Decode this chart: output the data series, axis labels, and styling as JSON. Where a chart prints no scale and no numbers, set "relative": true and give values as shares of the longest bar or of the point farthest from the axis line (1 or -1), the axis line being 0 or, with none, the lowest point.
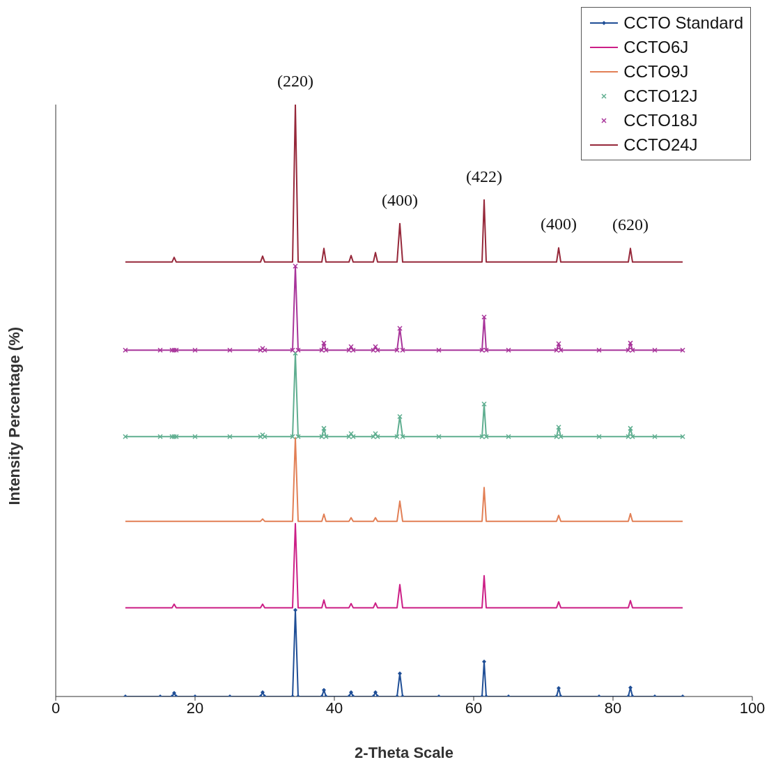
{
  "chart_data": {
    "type": "line",
    "relative": true,
    "xlabel": "2-Theta Scale",
    "ylabel": "Intensity Percentage (%)",
    "x": [
      10,
      15,
      16.7,
      17,
      17.3,
      20,
      25,
      29.4,
      29.7,
      30,
      34,
      34.4,
      34.8,
      38.2,
      38.5,
      38.8,
      42.1,
      42.4,
      42.7,
      45.6,
      45.9,
      46.2,
      49,
      49.4,
      49.8,
      55,
      61.2,
      61.5,
      61.8,
      65,
      71.9,
      72.2,
      72.5,
      78,
      82.2,
      82.5,
      82.8,
      86,
      90
    ],
    "xlim": [
      0,
      100
    ],
    "xticks": [
      0,
      20,
      40,
      60,
      80,
      100
    ],
    "legend": "top right",
    "tick_labels": "x",
    "series": [
      {
        "name": "CCTO Standard",
        "color": "#1f4e96",
        "marker": "diamond",
        "values": [
          0,
          0,
          0,
          0.006,
          0,
          0,
          0,
          0,
          0.007,
          0,
          0,
          0.146,
          0,
          0,
          0.011,
          0,
          0,
          0.007,
          0,
          0,
          0.007,
          0,
          0,
          0.039,
          0,
          0,
          0,
          0.059,
          0,
          0,
          0,
          0.014,
          0,
          0,
          0,
          0.015,
          0,
          0,
          0
        ]
      },
      {
        "name": "CCTO6J",
        "color": "#cc1f86",
        "values": [
          0.15,
          0.15,
          0.15,
          0.156,
          0.15,
          0.15,
          0.15,
          0.15,
          0.156,
          0.15,
          0.15,
          0.292,
          0.15,
          0.15,
          0.163,
          0.15,
          0.15,
          0.157,
          0.15,
          0.15,
          0.158,
          0.15,
          0.15,
          0.189,
          0.15,
          0.15,
          0.15,
          0.204,
          0.15,
          0.15,
          0.15,
          0.16,
          0.15,
          0.15,
          0.15,
          0.162,
          0.15,
          0.15,
          0.15
        ]
      },
      {
        "name": "CCTO9J",
        "color": "#e27f55",
        "values": [
          0.296,
          0.296,
          0.296,
          0.296,
          0.296,
          0.296,
          0.296,
          0.296,
          0.3,
          0.296,
          0.296,
          0.437,
          0.296,
          0.296,
          0.308,
          0.296,
          0.296,
          0.302,
          0.296,
          0.296,
          0.302,
          0.296,
          0.296,
          0.33,
          0.296,
          0.296,
          0.296,
          0.353,
          0.296,
          0.296,
          0.296,
          0.306,
          0.296,
          0.296,
          0.296,
          0.309,
          0.296,
          0.296,
          0.296
        ]
      },
      {
        "name": "CCTO12J",
        "color": "#5fae90",
        "marker": "cross",
        "values": [
          0.439,
          0.439,
          0.439,
          0.439,
          0.439,
          0.439,
          0.439,
          0.439,
          0.442,
          0.439,
          0.439,
          0.58,
          0.439,
          0.439,
          0.453,
          0.439,
          0.439,
          0.444,
          0.439,
          0.439,
          0.444,
          0.439,
          0.439,
          0.473,
          0.439,
          0.439,
          0.439,
          0.494,
          0.439,
          0.439,
          0.439,
          0.455,
          0.439,
          0.439,
          0.439,
          0.453,
          0.439,
          0.439,
          0.439
        ]
      },
      {
        "name": "CCTO18J",
        "color": "#a8349a",
        "marker": "cross",
        "values": [
          0.585,
          0.585,
          0.585,
          0.585,
          0.585,
          0.585,
          0.585,
          0.585,
          0.588,
          0.585,
          0.585,
          0.727,
          0.585,
          0.585,
          0.597,
          0.585,
          0.585,
          0.591,
          0.585,
          0.585,
          0.591,
          0.585,
          0.585,
          0.622,
          0.585,
          0.585,
          0.585,
          0.641,
          0.585,
          0.585,
          0.585,
          0.596,
          0.585,
          0.585,
          0.585,
          0.597,
          0.585,
          0.585,
          0.585
        ]
      },
      {
        "name": "CCTO24J",
        "color": "#96283a",
        "values": [
          0.734,
          0.734,
          0.734,
          0.742,
          0.734,
          0.734,
          0.734,
          0.734,
          0.744,
          0.734,
          0.734,
          1,
          0.734,
          0.734,
          0.757,
          0.734,
          0.734,
          0.745,
          0.734,
          0.734,
          0.75,
          0.734,
          0.734,
          0.799,
          0.734,
          0.734,
          0.734,
          0.839,
          0.734,
          0.734,
          0.734,
          0.758,
          0.734,
          0.734,
          0.734,
          0.757,
          0.734,
          0.734,
          0.734
        ]
      }
    ],
    "annotations": [
      {
        "text": "(220)",
        "x": 34.4,
        "y": 1
      },
      {
        "text": "(400)",
        "x": 49.4,
        "y": 0.799
      },
      {
        "text": "(422)",
        "x": 61.5,
        "y": 0.839
      },
      {
        "text": "(400)",
        "x": 72.2,
        "y": 0.758
      },
      {
        "text": "(620)",
        "x": 82.5,
        "y": 0.757
      }
    ]
  }
}
